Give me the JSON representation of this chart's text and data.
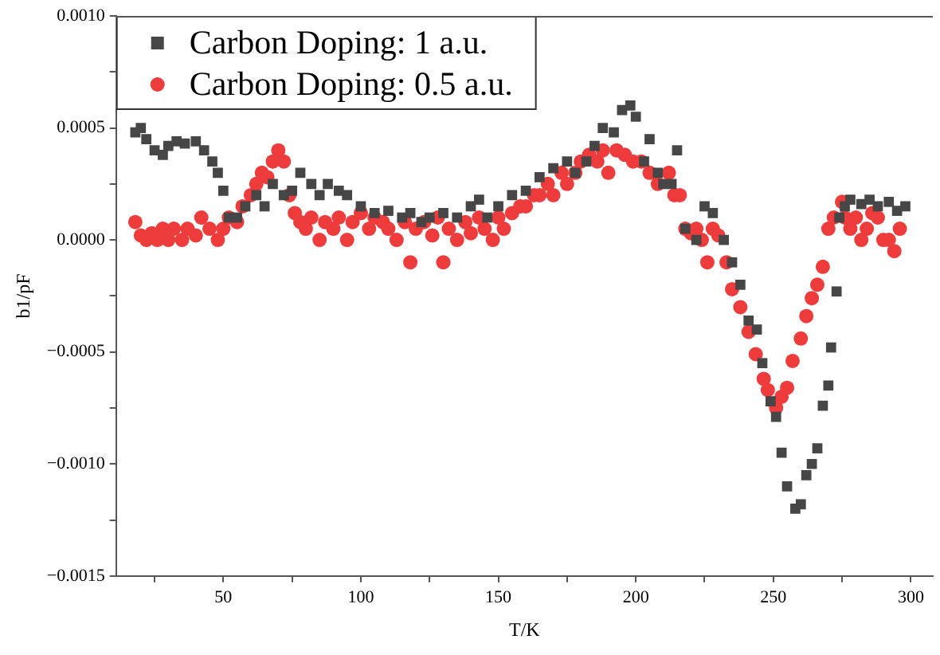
{
  "chart_data": {
    "type": "scatter",
    "xlabel": "T/K",
    "ylabel": "b1/pF",
    "xlim": [
      11,
      308
    ],
    "ylim": [
      -0.0015,
      0.001
    ],
    "xticks": [
      {
        "value": 25,
        "label": null
      },
      50,
      {
        "value": 75,
        "label": null
      },
      100,
      {
        "value": 125,
        "label": null
      },
      150,
      {
        "value": 175,
        "label": null
      },
      200,
      {
        "value": 225,
        "label": null
      },
      250,
      {
        "value": 275,
        "label": null
      },
      300
    ],
    "yticks": [
      {
        "value": -0.0015,
        "label": "−0.0015"
      },
      {
        "value": -0.00125,
        "label": null
      },
      {
        "value": -0.001,
        "label": "−0.0010"
      },
      {
        "value": -0.00075,
        "label": null
      },
      {
        "value": -0.0005,
        "label": "−0.0005"
      },
      {
        "value": -0.00025,
        "label": null
      },
      {
        "value": 0,
        "label": "0.0000"
      },
      {
        "value": 0.00025,
        "label": null
      },
      {
        "value": 0.0005,
        "label": "0.0005"
      },
      {
        "value": 0.00075,
        "label": null
      },
      {
        "value": 0.001,
        "label": "0.0010"
      }
    ],
    "grid": false,
    "legend": "top left",
    "series": [
      {
        "name": "Carbon Doping: 1 a.u.",
        "color": "#464646",
        "marker": "square",
        "x": [
          18,
          20,
          22,
          25,
          28,
          30,
          33,
          36,
          40,
          43,
          46,
          48,
          50,
          52,
          55,
          58,
          62,
          65,
          68,
          72,
          75,
          78,
          82,
          85,
          88,
          92,
          95,
          100,
          105,
          110,
          115,
          118,
          122,
          125,
          130,
          135,
          140,
          143,
          146,
          150,
          155,
          160,
          165,
          170,
          175,
          178,
          182,
          185,
          188,
          192,
          195,
          198,
          200,
          203,
          205,
          208,
          210,
          213,
          215,
          218,
          222,
          225,
          228,
          232,
          235,
          238,
          241,
          244,
          246,
          249,
          251,
          253,
          255,
          258,
          260,
          262,
          264,
          266,
          268,
          270,
          271,
          273,
          274,
          276,
          278,
          282,
          285,
          288,
          292,
          295,
          298
        ],
        "values": [
          0.00048,
          0.0005,
          0.00045,
          0.0004,
          0.00038,
          0.00042,
          0.00044,
          0.00043,
          0.00044,
          0.0004,
          0.00035,
          0.0003,
          0.00022,
          0.0001,
          0.0001,
          0.00015,
          0.0002,
          0.00015,
          0.00025,
          0.0002,
          0.00022,
          0.0003,
          0.00025,
          0.0002,
          0.00025,
          0.00022,
          0.0002,
          0.00015,
          0.00012,
          0.00013,
          0.0001,
          0.00012,
          8e-05,
          0.0001,
          0.00012,
          0.0001,
          0.00015,
          0.00018,
          0.0001,
          0.00015,
          0.0002,
          0.00022,
          0.00028,
          0.00032,
          0.00035,
          0.0003,
          0.00035,
          0.00042,
          0.0005,
          0.00048,
          0.00058,
          0.0006,
          0.00055,
          0.00035,
          0.00045,
          0.0003,
          0.00025,
          0.00025,
          0.0004,
          5e-05,
          0,
          0.00015,
          0.00012,
          0,
          -0.0001,
          -0.0002,
          -0.00036,
          -0.0004,
          -0.00055,
          -0.00072,
          -0.00079,
          -0.00095,
          -0.0011,
          -0.0012,
          -0.00118,
          -0.00105,
          -0.001,
          -0.00093,
          -0.00074,
          -0.00065,
          -0.00048,
          -0.00023,
          0.0001,
          0.00015,
          0.00018,
          0.00016,
          0.00018,
          0.00015,
          0.00017,
          0.00013,
          0.00015
        ]
      },
      {
        "name": "Carbon Doping: 0.5 a.u.",
        "color": "#ee3b3b",
        "marker": "circle",
        "x": [
          18,
          20,
          22,
          24,
          26,
          28,
          30,
          32,
          35,
          37,
          40,
          42,
          45,
          48,
          50,
          52,
          55,
          57,
          60,
          62,
          64,
          66,
          68,
          70,
          72,
          74,
          76,
          78,
          80,
          82,
          85,
          87,
          90,
          92,
          95,
          97,
          100,
          103,
          105,
          108,
          110,
          113,
          116,
          118,
          120,
          123,
          126,
          128,
          130,
          132,
          135,
          138,
          140,
          143,
          145,
          148,
          150,
          152,
          155,
          158,
          160,
          163,
          165,
          168,
          170,
          173,
          175,
          178,
          180,
          183,
          186,
          188,
          190,
          193,
          196,
          199,
          202,
          205,
          208,
          212,
          214,
          216,
          218,
          220,
          222,
          224,
          226,
          228,
          230,
          233,
          235,
          238,
          241,
          243.6,
          246.5,
          248,
          251,
          253,
          255,
          257,
          260,
          262,
          264,
          266,
          268,
          270,
          272,
          275,
          276,
          278,
          280,
          282,
          284,
          286,
          288,
          290,
          292,
          294,
          296
        ],
        "values": [
          8e-05,
          2e-05,
          0,
          3e-05,
          0,
          5e-05,
          0,
          5e-05,
          0,
          5e-05,
          2e-05,
          0.0001,
          5e-05,
          0,
          5e-05,
          0.0001,
          8e-05,
          0.00015,
          0.0002,
          0.00025,
          0.0003,
          0.00028,
          0.00035,
          0.0004,
          0.00035,
          0.0002,
          0.00012,
          8e-05,
          5e-05,
          0.0001,
          0,
          8e-05,
          5e-05,
          0.0001,
          0,
          8e-05,
          0.00012,
          5e-05,
          0.0001,
          8e-05,
          5e-05,
          0,
          8e-05,
          -0.0001,
          5e-05,
          8e-05,
          2e-05,
          0.0001,
          -0.0001,
          5e-05,
          0,
          8e-05,
          3e-05,
          0.0001,
          5e-05,
          0,
          0.0001,
          5e-05,
          0.00012,
          0.00015,
          0.00015,
          0.0002,
          0.0002,
          0.00025,
          0.0002,
          0.0003,
          0.00025,
          0.0003,
          0.00035,
          0.00038,
          0.00035,
          0.0004,
          0.0003,
          0.0004,
          0.00038,
          0.00035,
          0.00035,
          0.0003,
          0.00025,
          0.0003,
          0.0002,
          0.0002,
          5e-05,
          3e-05,
          5e-05,
          0,
          -0.0001,
          5e-05,
          2e-05,
          -0.0001,
          -0.00022,
          -0.0003,
          -0.00041,
          -0.00051,
          -0.00062,
          -0.00067,
          -0.00075,
          -0.0007,
          -0.00066,
          -0.00054,
          -0.00044,
          -0.00034,
          -0.00026,
          -0.0002,
          -0.00012,
          5e-05,
          0.0001,
          0.00017,
          0.0001,
          5e-05,
          0.0001,
          0,
          5e-05,
          0.00012,
          0.0001,
          0,
          0,
          -5e-05,
          5e-05
        ]
      }
    ]
  }
}
